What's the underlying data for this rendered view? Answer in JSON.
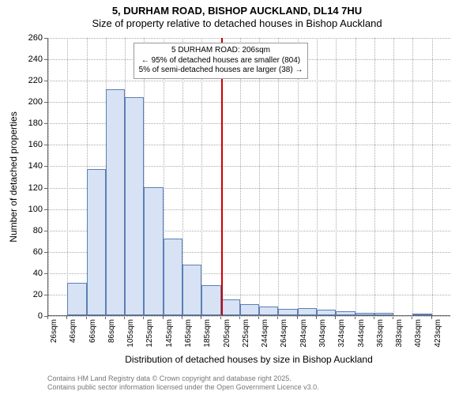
{
  "title": {
    "main": "5, DURHAM ROAD, BISHOP AUCKLAND, DL14 7HU",
    "sub": "Size of property relative to detached houses in Bishop Auckland"
  },
  "axes": {
    "y_label": "Number of detached properties",
    "x_label": "Distribution of detached houses by size in Bishop Auckland",
    "ylim": [
      0,
      260
    ],
    "y_ticks": [
      0,
      20,
      40,
      60,
      80,
      100,
      120,
      140,
      160,
      180,
      200,
      220,
      240,
      260
    ],
    "x_ticks": [
      "26sqm",
      "46sqm",
      "66sqm",
      "86sqm",
      "105sqm",
      "125sqm",
      "145sqm",
      "165sqm",
      "185sqm",
      "205sqm",
      "225sqm",
      "244sqm",
      "264sqm",
      "284sqm",
      "304sqm",
      "324sqm",
      "344sqm",
      "363sqm",
      "383sqm",
      "403sqm",
      "423sqm"
    ]
  },
  "chart": {
    "type": "histogram",
    "bar_fill": "#d7e2f4",
    "bar_border": "#5b7fb5",
    "grid_color": "#aaaaaa",
    "background_color": "#ffffff",
    "values": [
      0,
      30,
      137,
      211,
      204,
      120,
      72,
      47,
      28,
      15,
      10,
      8,
      6,
      7,
      5,
      4,
      2,
      2,
      0,
      1,
      0
    ]
  },
  "reference_line": {
    "position_category_index": 9,
    "color": "#cc0000",
    "width": 2
  },
  "annotation": {
    "line1": "5 DURHAM ROAD: 206sqm",
    "line2": "← 95% of detached houses are smaller (804)",
    "line3": "5% of semi-detached houses are larger (38) →"
  },
  "footer": {
    "line1": "Contains HM Land Registry data © Crown copyright and database right 2025.",
    "line2": "Contains public sector information licensed under the Open Government Licence v3.0."
  }
}
